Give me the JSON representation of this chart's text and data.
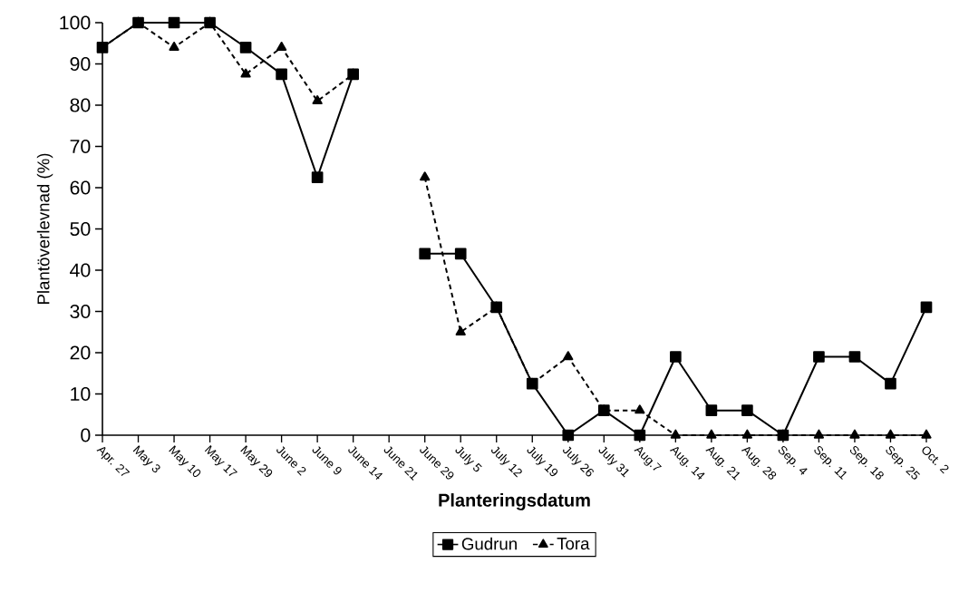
{
  "chart_data": {
    "type": "line",
    "xlabel": "Planteringsdatum",
    "ylabel": "Plantöverlevnad (%)",
    "categories": [
      "Apr. 27",
      "May 3",
      "May 10",
      "May 17",
      "May 29",
      "June 2",
      "June 9",
      "June 14",
      "June 21",
      "June 29",
      "July 5",
      "July 12",
      "July 19",
      "July 26",
      "July 31",
      "Aug.7",
      "Aug. 14",
      "Aug. 21",
      "Aug. 28",
      "Sep. 4",
      "Sep. 11",
      "Sep. 18",
      "Sep. 25",
      "Oct. 2"
    ],
    "series": [
      {
        "name": "Gudrun",
        "color": "#000000",
        "marker": "square",
        "line_style": "solid",
        "values": [
          94,
          100,
          100,
          100,
          94,
          87.5,
          62.5,
          87.5,
          null,
          44,
          44,
          31,
          12.5,
          0,
          6,
          0,
          19,
          6,
          6,
          0,
          19,
          19,
          12.5,
          31
        ]
      },
      {
        "name": "Tora",
        "color": "#000000",
        "marker": "triangle",
        "line_style": "dashed",
        "values": [
          94,
          100,
          94,
          100,
          87.5,
          94,
          81,
          87.5,
          null,
          62.5,
          25,
          31,
          12.5,
          19,
          6,
          6,
          0,
          0,
          0,
          0,
          0,
          0,
          0,
          0
        ]
      }
    ],
    "ylim": [
      0,
      100
    ],
    "yticks": [
      0,
      10,
      20,
      30,
      40,
      50,
      60,
      70,
      80,
      90,
      100
    ],
    "grid": false,
    "legend": "bottom"
  }
}
